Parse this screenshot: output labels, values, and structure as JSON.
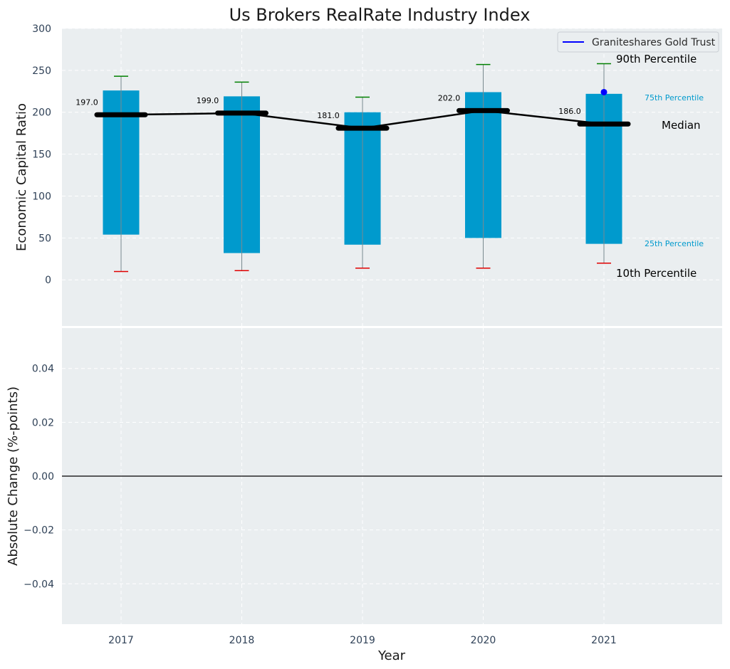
{
  "chart_data": [
    {
      "type": "bar",
      "title": "Us Brokers RealRate Industry Index",
      "ylabel": "Economic Capital Ratio",
      "xlabel": "",
      "ylim": [
        -55,
        300
      ],
      "yticks": [
        "0",
        "50",
        "100",
        "150",
        "200",
        "250",
        "300"
      ],
      "ytick_values": [
        0,
        50,
        100,
        150,
        200,
        250,
        300
      ],
      "categories": [
        "2017",
        "2018",
        "2019",
        "2020",
        "2021"
      ],
      "series": [
        {
          "name": "10th Percentile",
          "values": [
            10,
            11,
            14,
            14,
            20
          ]
        },
        {
          "name": "25th Percentile",
          "values": [
            54,
            32,
            42,
            50,
            43
          ]
        },
        {
          "name": "Median",
          "values": [
            197,
            199,
            181,
            202,
            186
          ]
        },
        {
          "name": "75th Percentile",
          "values": [
            226,
            219,
            200,
            224,
            222
          ]
        },
        {
          "name": "90th Percentile",
          "values": [
            243,
            236,
            218,
            257,
            258
          ]
        },
        {
          "name": "Graniteshares Gold Trust",
          "values": [
            null,
            null,
            null,
            null,
            224
          ]
        }
      ],
      "median_labels": [
        "197.0",
        "199.0",
        "181.0",
        "202.0",
        "186.0"
      ],
      "annotations": {
        "p90": "90th Percentile",
        "p75": "75th Percentile",
        "median": "Median",
        "p25": "25th Percentile",
        "p10": "10th Percentile"
      },
      "legend": {
        "label": "Graniteshares Gold Trust",
        "placement": "top-right"
      },
      "grid": true
    },
    {
      "type": "line",
      "title": "",
      "xlabel": "Year",
      "ylabel": "Absolute Change (%-points)",
      "ylim": [
        -0.055,
        0.055
      ],
      "yticks": [
        "−0.04",
        "−0.02",
        "0.00",
        "0.02",
        "0.04"
      ],
      "ytick_values": [
        -0.04,
        -0.02,
        0,
        0.02,
        0.04
      ],
      "categories": [
        "2017",
        "2018",
        "2019",
        "2020",
        "2021"
      ],
      "series": [],
      "reference_line": 0,
      "grid": true
    }
  ],
  "colors": {
    "bar": "#009acd",
    "median": "#000000",
    "p90_cap": "#008000",
    "p10_cap": "#e00000",
    "company_point": "#0000ff",
    "p_label": "#009acd",
    "axes_bg": "#eaeef0",
    "grid": "#ffffff",
    "tick_text": "#2f4157"
  }
}
